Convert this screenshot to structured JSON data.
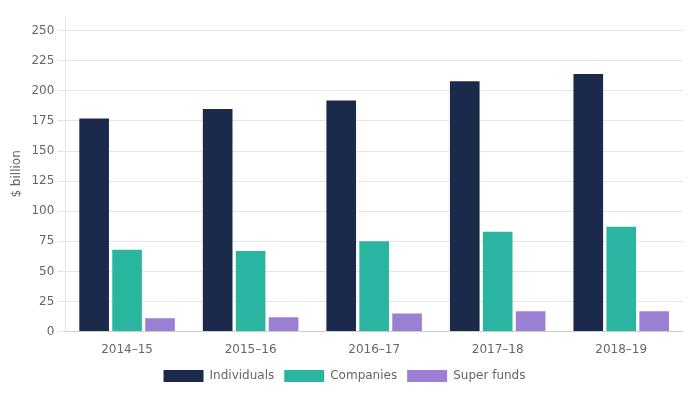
{
  "chart_data": {
    "type": "bar",
    "categories": [
      "2014–15",
      "2015–16",
      "2016–17",
      "2017–18",
      "2018–19"
    ],
    "series": [
      {
        "name": "Individuals",
        "color": "#1b2a4a",
        "values": [
          177,
          185,
          192,
          208,
          214
        ]
      },
      {
        "name": "Companies",
        "color": "#2ab5a0",
        "values": [
          68,
          67,
          75,
          83,
          87
        ]
      },
      {
        "name": "Super funds",
        "color": "#9b7fd4",
        "values": [
          11,
          12,
          15,
          17,
          17
        ]
      }
    ],
    "ylabel": "$ billion",
    "ylim": [
      0,
      262
    ],
    "yticks": [
      0,
      25,
      50,
      75,
      100,
      125,
      150,
      175,
      200,
      225,
      250
    ],
    "grid": true,
    "legend": "bottom"
  }
}
